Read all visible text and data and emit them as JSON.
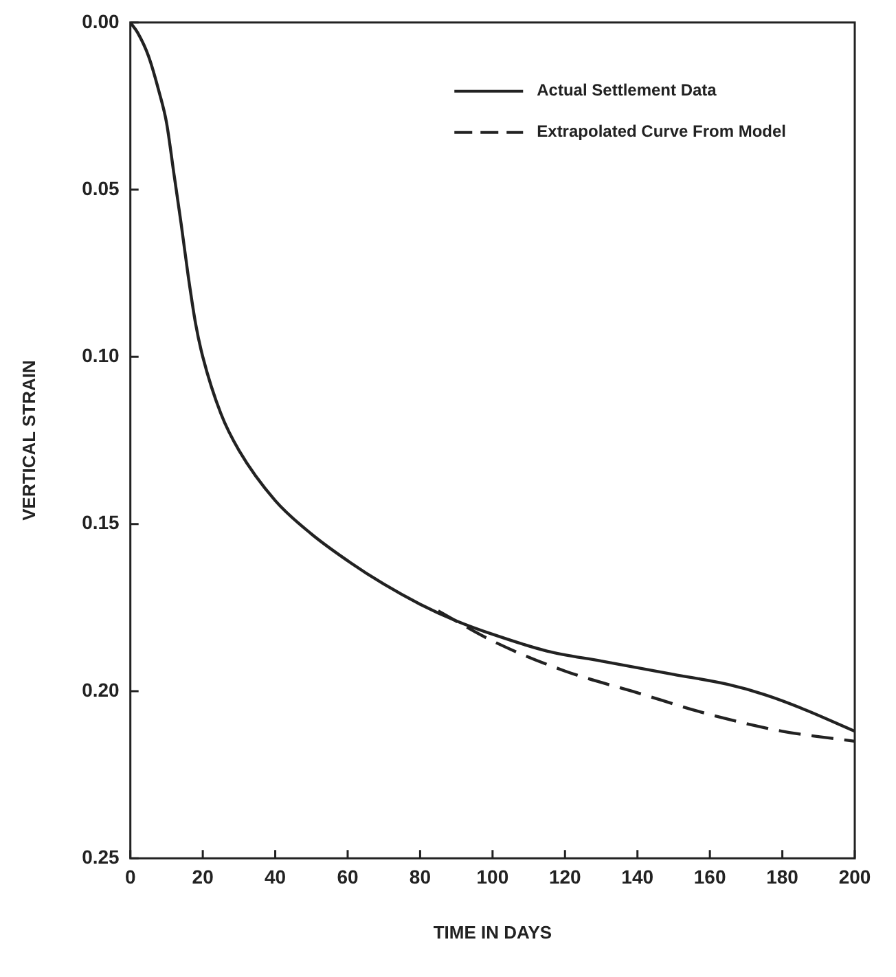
{
  "chart_data": {
    "type": "line",
    "xlabel": "TIME IN DAYS",
    "ylabel": "VERTICAL STRAIN",
    "xlim": [
      0,
      200
    ],
    "xticks": [
      0,
      20,
      40,
      60,
      80,
      100,
      120,
      140,
      160,
      180,
      200
    ],
    "ylim": [
      0.25,
      0
    ],
    "yticks": [
      {
        "value": 0,
        "label": "0.00"
      },
      {
        "value": 0.05,
        "label": "0.05"
      },
      {
        "value": 0.1,
        "label": "0.10"
      },
      {
        "value": 0.15,
        "label": "0.15"
      },
      {
        "value": 0.2,
        "label": "0.20"
      },
      {
        "value": 0.25,
        "label": "0.25"
      }
    ],
    "grid": false,
    "legend": "top right",
    "marker": "none",
    "series": [
      {
        "name": "Actual Settlement Data",
        "color": "#222222",
        "line_style": "solid",
        "x": [
          0,
          2,
          5,
          8,
          10,
          12,
          14,
          16,
          18,
          20,
          25,
          30,
          40,
          50,
          60,
          70,
          80,
          90,
          100,
          115,
          130,
          150,
          165,
          175,
          185,
          200
        ],
        "values": [
          0,
          0.003,
          0.01,
          0.021,
          0.03,
          0.045,
          0.06,
          0.076,
          0.09,
          0.1,
          0.117,
          0.128,
          0.143,
          0.153,
          0.161,
          0.168,
          0.174,
          0.179,
          0.183,
          0.188,
          0.191,
          0.195,
          0.198,
          0.201,
          0.205,
          0.212
        ]
      },
      {
        "name": "Extrapolated Curve From Model",
        "color": "#222222",
        "line_style": "dashed",
        "x": [
          85,
          100,
          120,
          140,
          160,
          180,
          200
        ],
        "values": [
          0.176,
          0.185,
          0.194,
          0.2005,
          0.207,
          0.212,
          0.215
        ]
      }
    ]
  }
}
